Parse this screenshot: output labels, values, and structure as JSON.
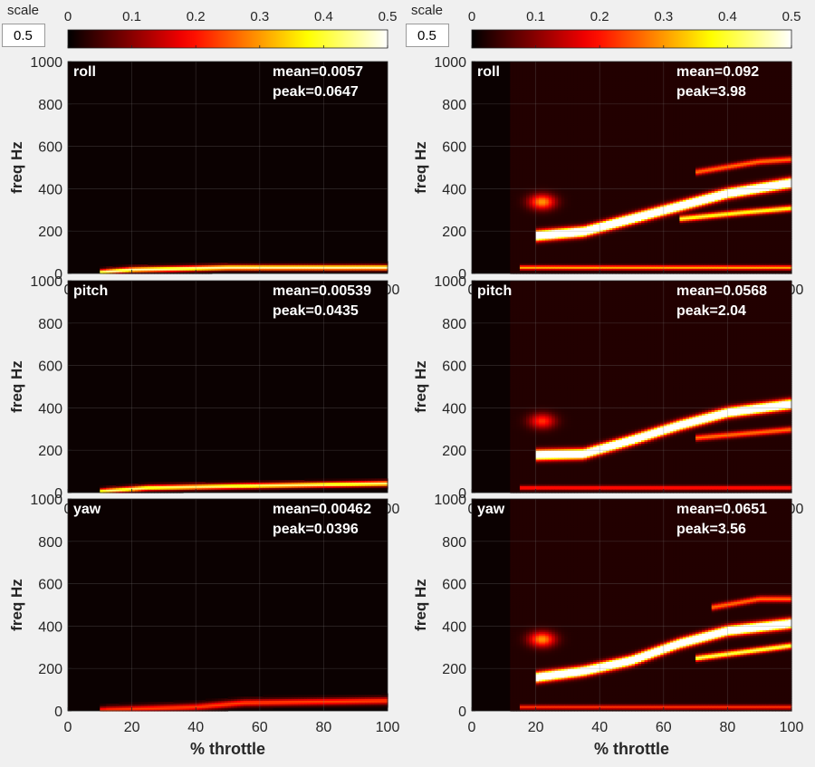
{
  "scale_controls": [
    {
      "label": "scale",
      "value": "0.5"
    },
    {
      "label": "scale",
      "value": "0.5"
    }
  ],
  "colorbar": {
    "ticks": [
      "0",
      "0.1",
      "0.2",
      "0.3",
      "0.4",
      "0.5"
    ],
    "range": [
      0,
      0.5
    ],
    "colormap": "hot"
  },
  "chart_data": [
    {
      "type": "heatmap",
      "column": "left",
      "label": "roll",
      "mean": "mean=0.0057",
      "peak": "peak=0.0647",
      "xlabel": "",
      "ylabel": "freq Hz",
      "xlim": [
        0,
        100
      ],
      "ylim": [
        0,
        1000
      ],
      "xticks": [
        "0",
        "20",
        "40",
        "60",
        "80",
        "100"
      ],
      "yticks": [
        "0",
        "200",
        "400",
        "600",
        "800",
        "1000"
      ],
      "features": [
        {
          "kind": "line",
          "points": [
            [
              10,
              8
            ],
            [
              20,
              20
            ],
            [
              50,
              30
            ],
            [
              100,
              30
            ]
          ],
          "intensity": 0.9,
          "hz_width": 12
        }
      ]
    },
    {
      "type": "heatmap",
      "column": "left",
      "label": "pitch",
      "mean": "mean=0.00539",
      "peak": "peak=0.0435",
      "xlabel": "",
      "ylabel": "freq Hz",
      "xlim": [
        0,
        100
      ],
      "ylim": [
        0,
        1000
      ],
      "xticks": [
        "0",
        "20",
        "40",
        "60",
        "80",
        "100"
      ],
      "yticks": [
        "0",
        "200",
        "400",
        "600",
        "800",
        "1000"
      ],
      "features": [
        {
          "kind": "line",
          "points": [
            [
              10,
              8
            ],
            [
              25,
              25
            ],
            [
              60,
              35
            ],
            [
              100,
              45
            ]
          ],
          "intensity": 0.85,
          "hz_width": 12
        }
      ]
    },
    {
      "type": "heatmap",
      "column": "left",
      "label": "yaw",
      "mean": "mean=0.00462",
      "peak": "peak=0.0396",
      "xlabel": "% throttle",
      "ylabel": "freq Hz",
      "xlim": [
        0,
        100
      ],
      "ylim": [
        0,
        1000
      ],
      "xticks": [
        "0",
        "20",
        "40",
        "60",
        "80",
        "100"
      ],
      "yticks": [
        "0",
        "200",
        "400",
        "600",
        "800",
        "1000"
      ],
      "features": [
        {
          "kind": "line",
          "points": [
            [
              10,
              5
            ],
            [
              40,
              20
            ],
            [
              55,
              40
            ],
            [
              100,
              50
            ]
          ],
          "intensity": 0.45,
          "hz_width": 16
        }
      ]
    },
    {
      "type": "heatmap",
      "column": "right",
      "label": "roll",
      "mean": "mean=0.092",
      "peak": "peak=3.98",
      "xlabel": "",
      "ylabel": "freq Hz",
      "xlim": [
        0,
        100
      ],
      "ylim": [
        0,
        1000
      ],
      "xticks": [
        "0",
        "20",
        "40",
        "60",
        "80",
        "100"
      ],
      "yticks": [
        "0",
        "200",
        "400",
        "600",
        "800",
        "1000"
      ],
      "features": [
        {
          "kind": "line",
          "points": [
            [
              20,
              180
            ],
            [
              35,
              200
            ],
            [
              50,
              260
            ],
            [
              65,
              320
            ],
            [
              80,
              380
            ],
            [
              100,
              430
            ]
          ],
          "intensity": 1.6,
          "hz_width": 22
        },
        {
          "kind": "line",
          "points": [
            [
              65,
              260
            ],
            [
              85,
              290
            ],
            [
              100,
              310
            ]
          ],
          "intensity": 0.75,
          "hz_width": 14
        },
        {
          "kind": "line",
          "points": [
            [
              70,
              480
            ],
            [
              90,
              530
            ],
            [
              100,
              540
            ]
          ],
          "intensity": 0.5,
          "hz_width": 14
        },
        {
          "kind": "blob",
          "x": 22,
          "hz": 340,
          "sx": 4,
          "sy": 35,
          "intensity": 0.55
        },
        {
          "kind": "line",
          "points": [
            [
              15,
              30
            ],
            [
              100,
              30
            ]
          ],
          "intensity": 0.6,
          "hz_width": 10
        }
      ]
    },
    {
      "type": "heatmap",
      "column": "right",
      "label": "pitch",
      "mean": "mean=0.0568",
      "peak": "peak=2.04",
      "xlabel": "",
      "ylabel": "freq Hz",
      "xlim": [
        0,
        100
      ],
      "ylim": [
        0,
        1000
      ],
      "xticks": [
        "0",
        "20",
        "40",
        "60",
        "80",
        "100"
      ],
      "yticks": [
        "0",
        "200",
        "400",
        "600",
        "800",
        "1000"
      ],
      "features": [
        {
          "kind": "line",
          "points": [
            [
              20,
              180
            ],
            [
              35,
              185
            ],
            [
              50,
              250
            ],
            [
              65,
              320
            ],
            [
              80,
              380
            ],
            [
              100,
              420
            ]
          ],
          "intensity": 1.5,
          "hz_width": 22
        },
        {
          "kind": "line",
          "points": [
            [
              70,
              260
            ],
            [
              100,
              300
            ]
          ],
          "intensity": 0.5,
          "hz_width": 14
        },
        {
          "kind": "blob",
          "x": 22,
          "hz": 340,
          "sx": 4,
          "sy": 35,
          "intensity": 0.4
        },
        {
          "kind": "line",
          "points": [
            [
              15,
              25
            ],
            [
              100,
              25
            ]
          ],
          "intensity": 0.4,
          "hz_width": 10
        }
      ]
    },
    {
      "type": "heatmap",
      "column": "right",
      "label": "yaw",
      "mean": "mean=0.0651",
      "peak": "peak=3.56",
      "xlabel": "% throttle",
      "ylabel": "freq Hz",
      "xlim": [
        0,
        100
      ],
      "ylim": [
        0,
        1000
      ],
      "xticks": [
        "0",
        "20",
        "40",
        "60",
        "80",
        "100"
      ],
      "yticks": [
        "0",
        "200",
        "400",
        "600",
        "800",
        "1000"
      ],
      "features": [
        {
          "kind": "line",
          "points": [
            [
              20,
              160
            ],
            [
              35,
              190
            ],
            [
              50,
              240
            ],
            [
              65,
              320
            ],
            [
              80,
              380
            ],
            [
              100,
              415
            ]
          ],
          "intensity": 1.5,
          "hz_width": 22
        },
        {
          "kind": "line",
          "points": [
            [
              70,
              250
            ],
            [
              85,
              280
            ],
            [
              100,
              310
            ]
          ],
          "intensity": 0.8,
          "hz_width": 14
        },
        {
          "kind": "line",
          "points": [
            [
              75,
              490
            ],
            [
              90,
              530
            ],
            [
              100,
              530
            ]
          ],
          "intensity": 0.5,
          "hz_width": 14
        },
        {
          "kind": "blob",
          "x": 22,
          "hz": 340,
          "sx": 4,
          "sy": 35,
          "intensity": 0.55
        },
        {
          "kind": "line",
          "points": [
            [
              15,
              20
            ],
            [
              100,
              20
            ]
          ],
          "intensity": 0.4,
          "hz_width": 10
        }
      ]
    }
  ]
}
